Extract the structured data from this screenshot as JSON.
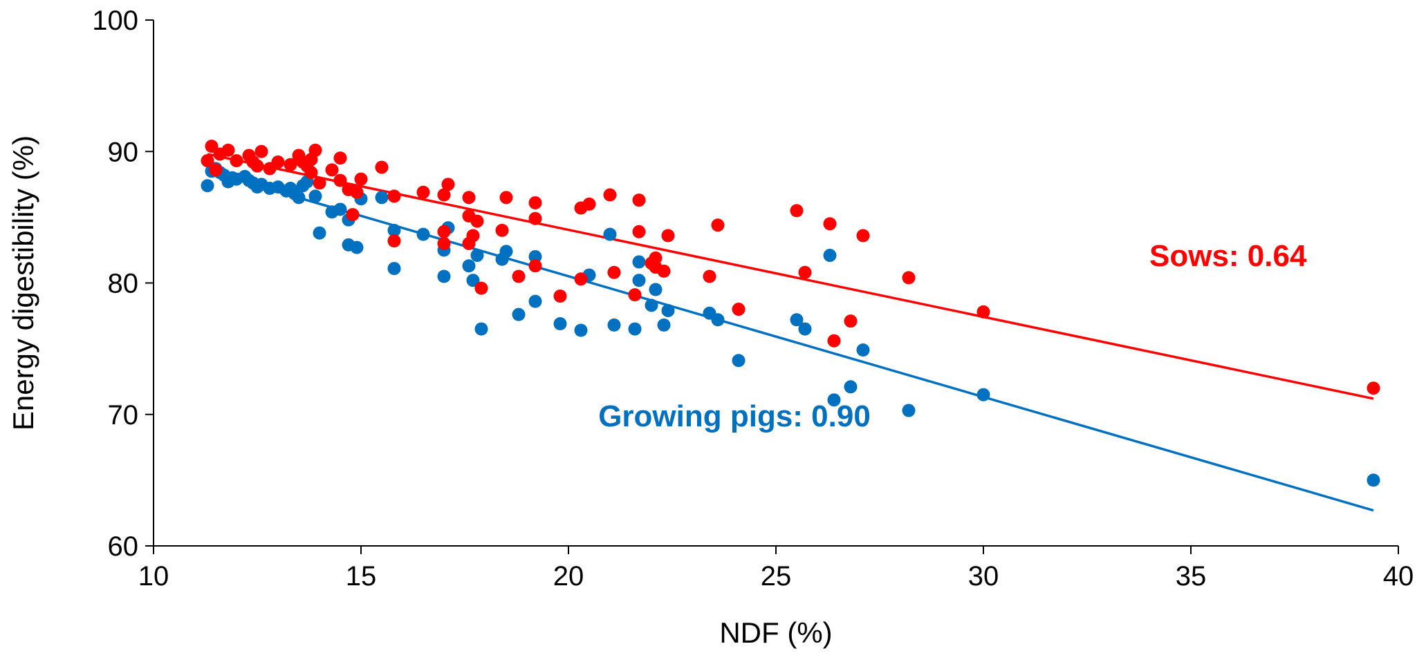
{
  "chart_data": {
    "type": "scatter",
    "title": "",
    "xlabel": "NDF (%)",
    "ylabel": "Energy digestibility (%)",
    "xlim": [
      10,
      40
    ],
    "ylim": [
      60,
      100
    ],
    "x_ticks": [
      10,
      15,
      20,
      25,
      30,
      35,
      40
    ],
    "y_ticks": [
      60,
      70,
      80,
      90,
      100
    ],
    "grid": false,
    "legend": "none",
    "series": [
      {
        "color": "#0070C0",
        "points": [
          [
            11.3,
            87.4
          ],
          [
            11.4,
            88.5
          ],
          [
            11.5,
            88.7
          ],
          [
            11.6,
            88.4
          ],
          [
            11.7,
            88.2
          ],
          [
            11.8,
            87.7
          ],
          [
            11.9,
            88.0
          ],
          [
            12.0,
            87.9
          ],
          [
            12.2,
            88.1
          ],
          [
            12.3,
            87.8
          ],
          [
            12.4,
            87.6
          ],
          [
            12.5,
            87.3
          ],
          [
            12.6,
            87.5
          ],
          [
            12.8,
            87.2
          ],
          [
            13.0,
            87.3
          ],
          [
            13.2,
            87.0
          ],
          [
            13.3,
            87.2
          ],
          [
            13.4,
            86.8
          ],
          [
            13.5,
            86.5
          ],
          [
            13.6,
            87.4
          ],
          [
            13.7,
            87.7
          ],
          [
            13.9,
            86.6
          ],
          [
            14.0,
            83.8
          ],
          [
            14.3,
            85.4
          ],
          [
            14.5,
            85.6
          ],
          [
            14.7,
            84.8
          ],
          [
            14.7,
            82.9
          ],
          [
            14.9,
            82.7
          ],
          [
            15.0,
            86.4
          ],
          [
            15.5,
            86.5
          ],
          [
            15.8,
            84.0
          ],
          [
            15.8,
            81.1
          ],
          [
            16.5,
            83.7
          ],
          [
            17.0,
            80.5
          ],
          [
            17.0,
            82.5
          ],
          [
            17.1,
            84.2
          ],
          [
            17.6,
            81.3
          ],
          [
            17.7,
            80.2
          ],
          [
            17.8,
            82.1
          ],
          [
            17.9,
            76.5
          ],
          [
            18.4,
            81.8
          ],
          [
            18.5,
            82.4
          ],
          [
            18.8,
            77.6
          ],
          [
            19.2,
            82.0
          ],
          [
            19.2,
            78.6
          ],
          [
            19.8,
            76.9
          ],
          [
            20.3,
            76.4
          ],
          [
            20.5,
            80.6
          ],
          [
            21.0,
            83.7
          ],
          [
            21.1,
            76.8
          ],
          [
            21.6,
            76.5
          ],
          [
            21.7,
            80.2
          ],
          [
            21.7,
            81.6
          ],
          [
            22.0,
            78.3
          ],
          [
            22.1,
            79.5
          ],
          [
            22.3,
            76.8
          ],
          [
            22.4,
            77.9
          ],
          [
            23.4,
            77.7
          ],
          [
            23.6,
            77.2
          ],
          [
            24.1,
            74.1
          ],
          [
            25.5,
            77.2
          ],
          [
            25.7,
            76.5
          ],
          [
            26.3,
            82.1
          ],
          [
            26.4,
            71.1
          ],
          [
            26.8,
            72.1
          ],
          [
            27.1,
            74.9
          ],
          [
            28.2,
            70.3
          ],
          [
            30.0,
            71.5
          ],
          [
            39.4,
            65.0
          ]
        ],
        "trendline": {
          "x": [
            11.3,
            39.4
          ],
          "y": [
            88.5,
            62.7
          ]
        }
      },
      {
        "color": "#FF0000",
        "points": [
          [
            11.3,
            89.3
          ],
          [
            11.4,
            90.4
          ],
          [
            11.5,
            88.6
          ],
          [
            11.6,
            89.8
          ],
          [
            11.8,
            90.1
          ],
          [
            12.0,
            89.3
          ],
          [
            12.3,
            89.7
          ],
          [
            12.4,
            89.2
          ],
          [
            12.5,
            88.9
          ],
          [
            12.6,
            90.0
          ],
          [
            12.8,
            88.7
          ],
          [
            13.0,
            89.2
          ],
          [
            13.3,
            89.0
          ],
          [
            13.5,
            89.7
          ],
          [
            13.6,
            89.2
          ],
          [
            13.7,
            88.9
          ],
          [
            13.8,
            88.4
          ],
          [
            13.8,
            89.4
          ],
          [
            13.9,
            90.1
          ],
          [
            14.0,
            87.6
          ],
          [
            14.3,
            88.6
          ],
          [
            14.5,
            89.5
          ],
          [
            14.5,
            87.8
          ],
          [
            14.7,
            87.1
          ],
          [
            14.8,
            85.2
          ],
          [
            14.9,
            86.9
          ],
          [
            15.0,
            87.9
          ],
          [
            15.5,
            88.8
          ],
          [
            15.8,
            86.6
          ],
          [
            15.8,
            83.2
          ],
          [
            16.5,
            86.9
          ],
          [
            17.0,
            86.7
          ],
          [
            17.1,
            87.5
          ],
          [
            17.0,
            83.9
          ],
          [
            17.0,
            83.0
          ],
          [
            17.6,
            86.5
          ],
          [
            17.6,
            85.1
          ],
          [
            17.7,
            83.6
          ],
          [
            17.8,
            84.7
          ],
          [
            17.9,
            79.6
          ],
          [
            17.6,
            83.0
          ],
          [
            18.4,
            84.0
          ],
          [
            18.5,
            86.5
          ],
          [
            18.8,
            80.5
          ],
          [
            19.2,
            86.1
          ],
          [
            19.2,
            84.9
          ],
          [
            19.2,
            81.3
          ],
          [
            19.8,
            79.0
          ],
          [
            20.3,
            85.7
          ],
          [
            20.3,
            80.3
          ],
          [
            20.5,
            86.0
          ],
          [
            21.0,
            86.7
          ],
          [
            21.1,
            80.8
          ],
          [
            21.6,
            79.1
          ],
          [
            21.7,
            86.3
          ],
          [
            21.7,
            83.9
          ],
          [
            22.0,
            81.5
          ],
          [
            22.1,
            81.9
          ],
          [
            22.1,
            81.2
          ],
          [
            22.3,
            80.9
          ],
          [
            22.4,
            83.6
          ],
          [
            23.4,
            80.5
          ],
          [
            23.6,
            84.4
          ],
          [
            24.1,
            78.0
          ],
          [
            25.5,
            85.5
          ],
          [
            25.7,
            80.8
          ],
          [
            26.3,
            84.5
          ],
          [
            26.4,
            75.6
          ],
          [
            26.8,
            77.1
          ],
          [
            27.1,
            83.6
          ],
          [
            28.2,
            80.4
          ],
          [
            30.0,
            77.8
          ],
          [
            39.4,
            72.0
          ]
        ],
        "trendline": {
          "x": [
            11.3,
            39.4
          ],
          "y": [
            89.8,
            71.2
          ]
        }
      }
    ],
    "annotations": [
      {
        "text": "Sows: 0.64",
        "color": "#FF0000",
        "x": 34.0,
        "y": 81.3,
        "anchor": "start"
      },
      {
        "text": "Growing pigs: 0.90",
        "color": "#0070C0",
        "x": 24.0,
        "y": 69.1,
        "anchor": "middle"
      }
    ]
  }
}
